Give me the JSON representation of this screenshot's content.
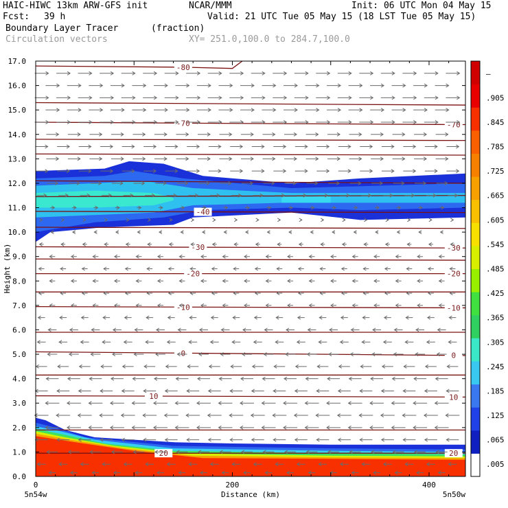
{
  "header": {
    "model": "HAIC-HIWC 13km ARW-GFS init",
    "org": "NCAR/MMM",
    "init": "Init: 06 UTC Mon 04 May 15",
    "fcst_label": "Fcst:",
    "fcst_value": "39 h",
    "valid": "Valid: 21 UTC Tue 05 May 15 (18 LST Tue 05 May 15)",
    "field": "Boundary Layer Tracer",
    "unit": "(fraction)",
    "vectors": "Circulation vectors",
    "xy": "XY= 251.0,100.0 to 284.7,100.0"
  },
  "chart_data": {
    "type": "heatmap",
    "xlabel": "Distance (km)",
    "ylabel": "Height (km)",
    "xlim": [
      0,
      437
    ],
    "ylim": [
      0,
      17
    ],
    "x_ticks": [
      {
        "v": 0,
        "label": "0"
      },
      {
        "v": 200,
        "label": "200"
      },
      {
        "v": 400,
        "label": "400"
      }
    ],
    "x_end_labels": {
      "left": "5n54w",
      "right": "5n50w"
    },
    "y_ticks": [
      "0.0",
      "1.0",
      "2.0",
      "3.0",
      "4.0",
      "5.0",
      "6.0",
      "7.0",
      "8.0",
      "9.0",
      "10.0",
      "11.0",
      "12.0",
      "13.0",
      "14.0",
      "15.0",
      "16.0",
      "17.0"
    ],
    "colorbar": {
      "colors": [
        "#ffffff",
        "#1020c0",
        "#2040e8",
        "#3a78f0",
        "#38c8f0",
        "#3ae8c8",
        "#30d060",
        "#40e040",
        "#98f000",
        "#d8f000",
        "#f8e000",
        "#f8c000",
        "#f8a000",
        "#f88000",
        "#f86000",
        "#f83000",
        "#e80000",
        "#d00000"
      ],
      "labels": [
        ".005",
        ".065",
        ".125",
        ".185",
        ".245",
        ".305",
        ".365",
        ".425",
        ".485",
        ".545",
        ".605",
        ".665",
        ".725",
        ".785",
        ".845",
        ".905",
        "–"
      ]
    },
    "tracer_layers": [
      {
        "name": "upper",
        "color": "#1a30d8",
        "bottom": [
          [
            0,
            9.6
          ],
          [
            15,
            10.0
          ],
          [
            70,
            10.2
          ],
          [
            140,
            10.3
          ],
          [
            160,
            10.6
          ],
          [
            260,
            10.8
          ],
          [
            330,
            10.5
          ],
          [
            437,
            10.6
          ]
        ],
        "top": [
          [
            0,
            12.5
          ],
          [
            70,
            12.6
          ],
          [
            95,
            12.9
          ],
          [
            130,
            12.8
          ],
          [
            170,
            12.3
          ],
          [
            260,
            12.0
          ],
          [
            330,
            12.2
          ],
          [
            437,
            12.4
          ]
        ]
      },
      {
        "name": "upper",
        "color": "#2c68f0",
        "bottom": [
          [
            0,
            10.0
          ],
          [
            60,
            10.4
          ],
          [
            130,
            10.6
          ],
          [
            170,
            10.9
          ],
          [
            260,
            11.0
          ],
          [
            330,
            10.9
          ],
          [
            437,
            11.0
          ]
        ],
        "top": [
          [
            0,
            12.2
          ],
          [
            70,
            12.3
          ],
          [
            100,
            12.5
          ],
          [
            150,
            12.2
          ],
          [
            260,
            11.8
          ],
          [
            437,
            12.0
          ]
        ]
      },
      {
        "name": "upper",
        "color": "#30c0f0",
        "bottom": [
          [
            0,
            10.6
          ],
          [
            60,
            10.7
          ],
          [
            120,
            10.8
          ],
          [
            160,
            11.1
          ],
          [
            250,
            11.2
          ],
          [
            320,
            11.2
          ],
          [
            437,
            11.2
          ]
        ],
        "top": [
          [
            0,
            11.9
          ],
          [
            60,
            12.0
          ],
          [
            110,
            12.1
          ],
          [
            160,
            11.8
          ],
          [
            260,
            11.6
          ],
          [
            437,
            11.6
          ]
        ]
      },
      {
        "name": "upper",
        "color": "#3ae8d0",
        "bottom": [
          [
            0,
            11.0
          ],
          [
            60,
            11.0
          ],
          [
            120,
            11.1
          ],
          [
            140,
            11.3
          ]
        ],
        "top": [
          [
            0,
            11.6
          ],
          [
            60,
            11.7
          ],
          [
            120,
            11.6
          ],
          [
            140,
            11.4
          ]
        ]
      },
      {
        "name": "upper",
        "color": "#38d8f0",
        "bottom": [
          [
            250,
            11.2
          ],
          [
            300,
            11.2
          ]
        ],
        "top": [
          [
            250,
            11.5
          ],
          [
            300,
            11.5
          ]
        ]
      },
      {
        "name": "lower",
        "color": "#1a30d8",
        "bottom": [
          [
            0,
            0
          ],
          [
            437,
            0
          ]
        ],
        "top": [
          [
            0,
            2.4
          ],
          [
            10,
            2.3
          ],
          [
            30,
            1.9
          ],
          [
            60,
            1.6
          ],
          [
            140,
            1.4
          ],
          [
            200,
            1.35
          ],
          [
            300,
            1.3
          ],
          [
            437,
            1.3
          ]
        ]
      },
      {
        "name": "lower",
        "color": "#2c68f0",
        "bottom": [
          [
            0,
            0
          ],
          [
            437,
            0
          ]
        ],
        "top": [
          [
            0,
            2.2
          ],
          [
            20,
            2.0
          ],
          [
            50,
            1.6
          ],
          [
            140,
            1.25
          ],
          [
            300,
            1.15
          ],
          [
            437,
            1.1
          ]
        ]
      },
      {
        "name": "lower",
        "color": "#38d0f0",
        "bottom": [
          [
            0,
            0
          ],
          [
            437,
            0
          ]
        ],
        "top": [
          [
            0,
            2.05
          ],
          [
            25,
            1.85
          ],
          [
            60,
            1.5
          ],
          [
            140,
            1.15
          ],
          [
            300,
            1.05
          ],
          [
            437,
            1.0
          ]
        ]
      },
      {
        "name": "lower",
        "color": "#40e060",
        "bottom": [
          [
            0,
            0
          ],
          [
            437,
            0
          ]
        ],
        "top": [
          [
            0,
            1.95
          ],
          [
            30,
            1.7
          ],
          [
            70,
            1.35
          ],
          [
            140,
            1.05
          ],
          [
            300,
            0.95
          ],
          [
            437,
            0.9
          ]
        ]
      },
      {
        "name": "lower",
        "color": "#d8f000",
        "bottom": [
          [
            0,
            0
          ],
          [
            437,
            0
          ]
        ],
        "top": [
          [
            0,
            1.85
          ],
          [
            30,
            1.6
          ],
          [
            80,
            1.25
          ],
          [
            150,
            0.95
          ],
          [
            300,
            0.85
          ],
          [
            437,
            0.82
          ]
        ]
      },
      {
        "name": "lower",
        "color": "#f8a000",
        "bottom": [
          [
            0,
            0
          ],
          [
            437,
            0
          ]
        ],
        "top": [
          [
            0,
            1.75
          ],
          [
            35,
            1.5
          ],
          [
            90,
            1.15
          ],
          [
            160,
            0.85
          ],
          [
            300,
            0.78
          ],
          [
            437,
            0.75
          ]
        ]
      },
      {
        "name": "lower",
        "color": "#f83000",
        "bottom": [
          [
            0,
            0
          ],
          [
            437,
            0
          ]
        ],
        "top": [
          [
            0,
            1.65
          ],
          [
            40,
            1.4
          ],
          [
            100,
            1.05
          ],
          [
            170,
            0.75
          ],
          [
            300,
            0.72
          ],
          [
            437,
            0.68
          ]
        ]
      }
    ],
    "temperature_contours": [
      {
        "label": "-80",
        "pts": [
          [
            0,
            16.8
          ],
          [
            150,
            16.75
          ],
          [
            200,
            16.7
          ],
          [
            210,
            17.0
          ]
        ],
        "label_at": 150
      },
      {
        "label": "",
        "pts": [
          [
            0,
            15.3
          ],
          [
            437,
            15.2
          ]
        ],
        "label_at": null
      },
      {
        "label": "-70",
        "pts": [
          [
            0,
            14.5
          ],
          [
            200,
            14.45
          ],
          [
            437,
            14.4
          ]
        ],
        "label_at": 150,
        "label2_at": 425
      },
      {
        "label": "",
        "pts": [
          [
            0,
            13.8
          ],
          [
            437,
            13.75
          ]
        ],
        "label_at": null
      },
      {
        "label": "",
        "pts": [
          [
            0,
            13.2
          ],
          [
            437,
            13.15
          ]
        ],
        "label_at": null
      },
      {
        "label": "",
        "pts": [
          [
            0,
            12.1
          ],
          [
            437,
            12.0
          ]
        ],
        "label_at": null
      },
      {
        "label": "",
        "pts": [
          [
            0,
            11.45
          ],
          [
            437,
            11.5
          ]
        ],
        "label_at": null
      },
      {
        "label": "-40",
        "pts": [
          [
            0,
            10.85
          ],
          [
            437,
            10.8
          ]
        ],
        "label_at": 170
      },
      {
        "label": "",
        "pts": [
          [
            0,
            10.2
          ],
          [
            437,
            10.15
          ]
        ],
        "label_at": null
      },
      {
        "label": "-30",
        "pts": [
          [
            0,
            9.4
          ],
          [
            437,
            9.35
          ]
        ],
        "label_at": 165,
        "label2_at": 425
      },
      {
        "label": "",
        "pts": [
          [
            0,
            8.9
          ],
          [
            437,
            8.85
          ]
        ],
        "label_at": null
      },
      {
        "label": "-20",
        "pts": [
          [
            0,
            8.3
          ],
          [
            437,
            8.3
          ]
        ],
        "label_at": 160,
        "label2_at": 425
      },
      {
        "label": "",
        "pts": [
          [
            0,
            7.55
          ],
          [
            437,
            7.55
          ]
        ],
        "label_at": null
      },
      {
        "label": "-10",
        "pts": [
          [
            0,
            6.95
          ],
          [
            437,
            6.9
          ]
        ],
        "label_at": 150,
        "label2_at": 425
      },
      {
        "label": "",
        "pts": [
          [
            0,
            5.9
          ],
          [
            437,
            5.9
          ]
        ],
        "label_at": null
      },
      {
        "label": "0",
        "pts": [
          [
            0,
            5.1
          ],
          [
            437,
            4.95
          ]
        ],
        "label_at": 150,
        "label2_at": 425
      },
      {
        "label": "",
        "pts": [
          [
            0,
            4.15
          ],
          [
            437,
            4.15
          ]
        ],
        "label_at": null
      },
      {
        "label": "10",
        "pts": [
          [
            0,
            3.3
          ],
          [
            437,
            3.25
          ]
        ],
        "label_at": 120,
        "label2_at": 425
      },
      {
        "label": "",
        "pts": [
          [
            0,
            1.9
          ],
          [
            437,
            1.9
          ]
        ],
        "label_at": null
      },
      {
        "label": "20",
        "pts": [
          [
            0,
            0.95
          ],
          [
            200,
            0.95
          ],
          [
            437,
            0.95
          ]
        ],
        "label_at": 130,
        "label2_at": 425
      }
    ],
    "wind_field": {
      "x_start": 0,
      "x_end": 430,
      "x_step": 22,
      "levels": [
        {
          "y": 16.5,
          "u": 1.0
        },
        {
          "y": 16.0,
          "u": 1.0
        },
        {
          "y": 15.5,
          "u": 1.0
        },
        {
          "y": 15.0,
          "u": 1.0
        },
        {
          "y": 14.5,
          "u": 1.0
        },
        {
          "y": 14.0,
          "u": 0.9
        },
        {
          "y": 13.5,
          "u": 0.9
        },
        {
          "y": 13.0,
          "u": 0.9
        },
        {
          "y": 12.5,
          "u": 0.9
        },
        {
          "y": 12.0,
          "u": 0.8
        },
        {
          "y": 11.5,
          "u": 0.7
        },
        {
          "y": 11.0,
          "u": 0.3
        },
        {
          "y": 10.5,
          "u": 0.1
        },
        {
          "y": 10.0,
          "u": -0.2
        },
        {
          "y": 9.5,
          "u": -0.3
        },
        {
          "y": 9.0,
          "u": -0.4
        },
        {
          "y": 8.5,
          "u": -0.4
        },
        {
          "y": 8.0,
          "u": -0.4
        },
        {
          "y": 7.5,
          "u": -0.4
        },
        {
          "y": 7.0,
          "u": -0.4
        },
        {
          "y": 6.5,
          "u": -0.5
        },
        {
          "y": 6.0,
          "u": -0.6
        },
        {
          "y": 5.5,
          "u": -0.6
        },
        {
          "y": 5.0,
          "u": -0.7
        },
        {
          "y": 4.5,
          "u": -0.8
        },
        {
          "y": 4.0,
          "u": -0.9
        },
        {
          "y": 3.5,
          "u": -0.9
        },
        {
          "y": 3.0,
          "u": -1.0
        },
        {
          "y": 2.5,
          "u": -1.0
        },
        {
          "y": 2.0,
          "u": -1.0
        },
        {
          "y": 1.5,
          "u": -0.9
        },
        {
          "y": 1.0,
          "u": -0.8
        },
        {
          "y": 0.5,
          "u": -0.6
        },
        {
          "y": 0.15,
          "u": -0.5
        }
      ]
    }
  }
}
